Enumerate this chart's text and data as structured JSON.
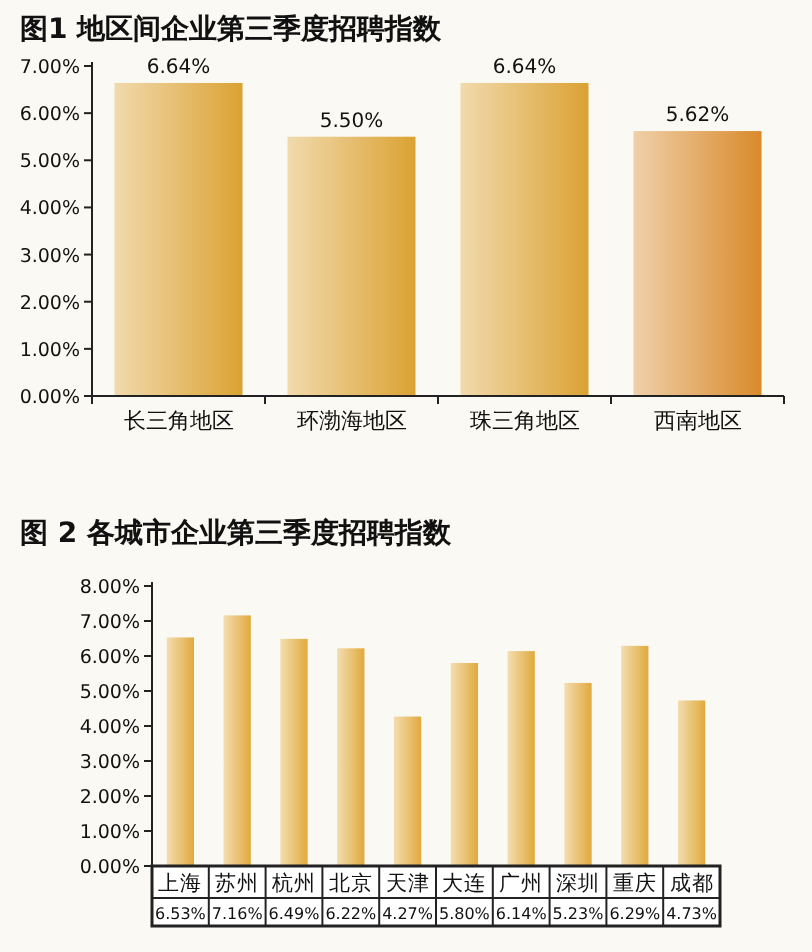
{
  "chart_data": [
    {
      "type": "bar",
      "title": "图1 地区间企业第三季度招聘指数",
      "categories": [
        "长三角地区",
        "环渤海地区",
        "珠三角地区",
        "西南地区"
      ],
      "values": [
        6.64,
        5.5,
        6.64,
        5.62
      ],
      "value_labels": [
        "6.64%",
        "5.50%",
        "6.64%",
        "5.62%"
      ],
      "colors": [
        "#dba233",
        "#dba233",
        "#dba233",
        "#d98a2b"
      ],
      "ylim": [
        0,
        7
      ],
      "yticks": [
        {
          "value": 0,
          "label": "0.00%"
        },
        {
          "value": 1,
          "label": "1.00%"
        },
        {
          "value": 2,
          "label": "2.00%"
        },
        {
          "value": 3,
          "label": "3.00%"
        },
        {
          "value": 4,
          "label": "4.00%"
        },
        {
          "value": 5,
          "label": "5.00%"
        },
        {
          "value": 6,
          "label": "6.00%"
        },
        {
          "value": 7,
          "label": "7.00%"
        }
      ]
    },
    {
      "type": "bar",
      "title": "图 2 各城市企业第三季度招聘指数",
      "categories": [
        "上海",
        "苏州",
        "杭州",
        "北京",
        "天津",
        "大连",
        "广州",
        "深圳",
        "重庆",
        "成都"
      ],
      "values": [
        6.53,
        7.16,
        6.49,
        6.22,
        4.27,
        5.8,
        6.14,
        5.23,
        6.29,
        4.73
      ],
      "value_labels": [
        "6.53%",
        "7.16%",
        "6.49%",
        "6.22%",
        "4.27%",
        "5.80%",
        "6.14%",
        "5.23%",
        "6.29%",
        "4.73%"
      ],
      "color": "#e0aa3c",
      "ylim": [
        0,
        8
      ],
      "yticks": [
        {
          "value": 0,
          "label": "0.00%"
        },
        {
          "value": 1,
          "label": "1.00%"
        },
        {
          "value": 2,
          "label": "2.00%"
        },
        {
          "value": 3,
          "label": "3.00%"
        },
        {
          "value": 4,
          "label": "4.00%"
        },
        {
          "value": 5,
          "label": "5.00%"
        },
        {
          "value": 6,
          "label": "6.00%"
        },
        {
          "value": 7,
          "label": "7.00%"
        },
        {
          "value": 8,
          "label": "8.00%"
        }
      ]
    }
  ]
}
